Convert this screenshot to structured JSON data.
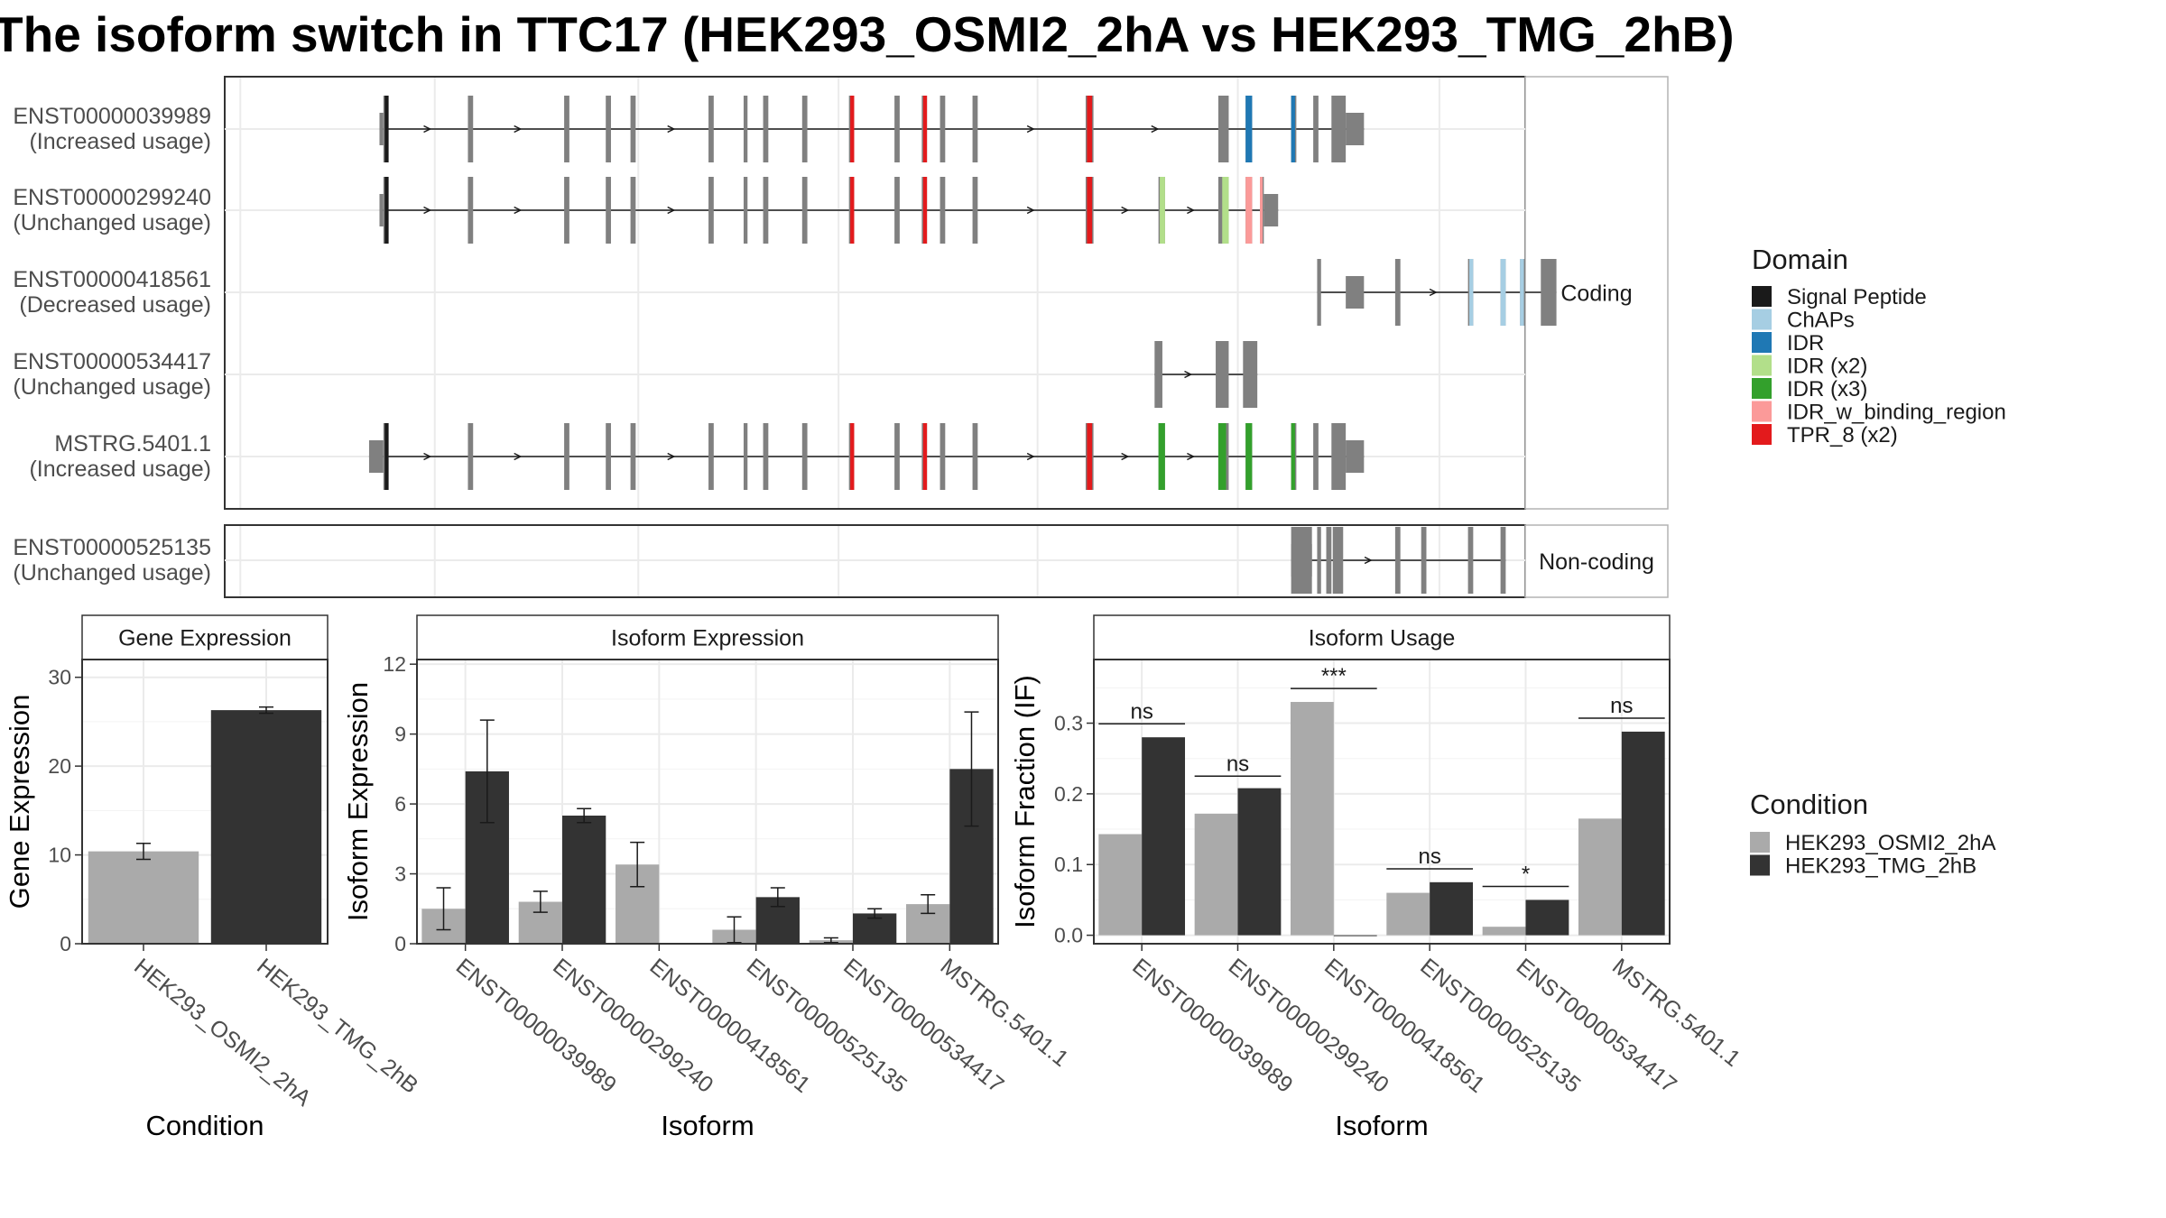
{
  "title": "The isoform switch in TTC17 (HEK293_OSMI2_2hA vs HEK293_TMG_2hB)",
  "structure_panel": {
    "facet_coding": "Coding",
    "facet_noncoding": "Non-coding",
    "isoforms": [
      {
        "id": "ENST00000039989",
        "usage": "(Increased usage)",
        "group": "coding",
        "utr_left": [
          [
            11.9,
            12.2
          ]
        ],
        "utr_right": [
          [
            86.2,
            87.6
          ]
        ],
        "start": 12.2,
        "end": 86.2,
        "exons": [
          [
            12.2,
            12.6
          ],
          [
            18.7,
            19.1
          ],
          [
            26.1,
            26.5
          ],
          [
            29.3,
            29.7
          ],
          [
            31.2,
            31.6
          ],
          [
            37.2,
            37.6
          ],
          [
            39.9,
            40.2
          ],
          [
            41.4,
            41.8
          ],
          [
            44.4,
            44.8
          ],
          [
            48.0,
            48.4
          ],
          [
            51.5,
            51.9
          ],
          [
            53.6,
            54.0
          ],
          [
            55.0,
            55.4
          ],
          [
            57.5,
            57.9
          ],
          [
            66.2,
            66.8
          ],
          [
            76.4,
            77.2
          ],
          [
            78.5,
            79.0
          ],
          [
            82.0,
            82.4
          ],
          [
            83.7,
            84.1
          ],
          [
            85.1,
            86.2
          ]
        ],
        "domains": [
          {
            "from": 12.3,
            "to": 12.6,
            "domain": "Signal Peptide"
          },
          {
            "from": 48.1,
            "to": 48.4,
            "domain": "TPR_8 (x2)"
          },
          {
            "from": 53.7,
            "to": 54.0,
            "domain": "TPR_8 (x2)"
          },
          {
            "from": 66.3,
            "to": 66.7,
            "domain": "TPR_8 (x2)"
          },
          {
            "from": 78.5,
            "to": 79.0,
            "domain": "IDR"
          },
          {
            "from": 82.0,
            "to": 82.3,
            "domain": "IDR"
          }
        ]
      },
      {
        "id": "ENST00000299240",
        "usage": "(Unchanged usage)",
        "group": "coding",
        "utr_left": [
          [
            11.9,
            12.2
          ]
        ],
        "utr_right": [
          [
            79.9,
            81.0
          ]
        ],
        "start": 12.2,
        "end": 79.9,
        "exons": [
          [
            12.2,
            12.6
          ],
          [
            18.7,
            19.1
          ],
          [
            26.1,
            26.5
          ],
          [
            29.3,
            29.7
          ],
          [
            31.2,
            31.6
          ],
          [
            37.2,
            37.6
          ],
          [
            39.9,
            40.2
          ],
          [
            41.4,
            41.8
          ],
          [
            44.4,
            44.8
          ],
          [
            48.0,
            48.4
          ],
          [
            51.5,
            51.9
          ],
          [
            53.6,
            54.0
          ],
          [
            55.0,
            55.4
          ],
          [
            57.5,
            57.9
          ],
          [
            66.2,
            66.8
          ],
          [
            71.8,
            72.3
          ],
          [
            76.4,
            77.2
          ],
          [
            78.5,
            79.0
          ],
          [
            79.6,
            79.9
          ]
        ],
        "domains": [
          {
            "from": 12.3,
            "to": 12.6,
            "domain": "Signal Peptide"
          },
          {
            "from": 48.1,
            "to": 48.4,
            "domain": "TPR_8 (x2)"
          },
          {
            "from": 53.7,
            "to": 54.0,
            "domain": "TPR_8 (x2)"
          },
          {
            "from": 66.3,
            "to": 66.7,
            "domain": "TPR_8 (x2)"
          },
          {
            "from": 71.9,
            "to": 72.3,
            "domain": "IDR (x2)"
          },
          {
            "from": 76.7,
            "to": 77.2,
            "domain": "IDR (x2)"
          },
          {
            "from": 78.5,
            "to": 79.0,
            "domain": "IDR_w_binding_region"
          },
          {
            "from": 79.6,
            "to": 79.8,
            "domain": "IDR_w_binding_region"
          }
        ]
      },
      {
        "id": "ENST00000418561",
        "usage": "(Decreased usage)",
        "group": "coding",
        "utr_left": [],
        "utr_right": [
          [
            86.2,
            87.6
          ]
        ],
        "start": 84.0,
        "end": 86.2,
        "exons": [
          [
            84.0,
            84.3
          ],
          [
            90.0,
            90.4
          ],
          [
            95.6,
            96.0
          ],
          [
            98.1,
            98.5
          ],
          [
            99.6,
            100.0
          ],
          [
            101.2,
            102.4
          ]
        ],
        "domains": [
          {
            "from": 95.7,
            "to": 96.0,
            "domain": "ChAPs"
          },
          {
            "from": 98.1,
            "to": 98.5,
            "domain": "ChAPs"
          },
          {
            "from": 99.6,
            "to": 99.9,
            "domain": "ChAPs"
          }
        ]
      },
      {
        "id": "ENST00000534417",
        "usage": "(Unchanged usage)",
        "group": "coding",
        "utr_left": [],
        "utr_right": [],
        "start": 71.5,
        "end": 79.4,
        "exons": [
          [
            71.5,
            72.1
          ],
          [
            76.2,
            77.2
          ],
          [
            78.3,
            79.4
          ]
        ],
        "domains": []
      },
      {
        "id": "MSTRG.5401.1",
        "usage": "(Increased usage)",
        "group": "coding",
        "utr_left": [
          [
            11.1,
            12.2
          ]
        ],
        "utr_right": [
          [
            86.2,
            87.6
          ]
        ],
        "start": 12.2,
        "end": 86.2,
        "exons": [
          [
            12.2,
            12.6
          ],
          [
            18.7,
            19.1
          ],
          [
            26.1,
            26.5
          ],
          [
            29.3,
            29.7
          ],
          [
            31.2,
            31.6
          ],
          [
            37.2,
            37.6
          ],
          [
            39.9,
            40.2
          ],
          [
            41.4,
            41.8
          ],
          [
            44.4,
            44.8
          ],
          [
            48.0,
            48.4
          ],
          [
            51.5,
            51.9
          ],
          [
            53.6,
            54.0
          ],
          [
            55.0,
            55.4
          ],
          [
            57.5,
            57.9
          ],
          [
            66.2,
            66.8
          ],
          [
            71.8,
            72.3
          ],
          [
            76.4,
            77.2
          ],
          [
            78.5,
            79.0
          ],
          [
            82.0,
            82.4
          ],
          [
            83.7,
            84.1
          ],
          [
            85.1,
            86.2
          ]
        ],
        "domains": [
          {
            "from": 12.3,
            "to": 12.6,
            "domain": "Signal Peptide"
          },
          {
            "from": 48.1,
            "to": 48.4,
            "domain": "TPR_8 (x2)"
          },
          {
            "from": 53.7,
            "to": 54.0,
            "domain": "TPR_8 (x2)"
          },
          {
            "from": 66.3,
            "to": 66.7,
            "domain": "TPR_8 (x2)"
          },
          {
            "from": 71.8,
            "to": 72.3,
            "domain": "IDR (x3)"
          },
          {
            "from": 76.4,
            "to": 77.0,
            "domain": "IDR (x3)"
          },
          {
            "from": 78.5,
            "to": 79.0,
            "domain": "IDR (x3)"
          },
          {
            "from": 82.0,
            "to": 82.3,
            "domain": "IDR (x3)"
          }
        ]
      },
      {
        "id": "ENST00000525135",
        "usage": "(Unchanged usage)",
        "group": "noncoding",
        "utr_left": [
          [
            82.0,
            83.6
          ]
        ],
        "utr_right": [],
        "start": 84.0,
        "end": 86.2,
        "exons": [
          [
            82.0,
            83.6
          ],
          [
            84.0,
            84.3
          ],
          [
            84.7,
            85.1
          ],
          [
            85.2,
            86.0
          ],
          [
            90.0,
            90.4
          ],
          [
            92.0,
            92.4
          ],
          [
            95.6,
            96.0
          ],
          [
            98.1,
            98.5
          ]
        ],
        "domains": []
      }
    ]
  },
  "domain_legend": {
    "title": "Domain",
    "items": [
      {
        "label": "Signal Peptide",
        "color": "#1a1a1a"
      },
      {
        "label": "ChAPs",
        "color": "#a6cee3"
      },
      {
        "label": "IDR",
        "color": "#1f78b4"
      },
      {
        "label": "IDR (x2)",
        "color": "#b2df8a"
      },
      {
        "label": "IDR (x3)",
        "color": "#33a02c"
      },
      {
        "label": "IDR_w_binding_region",
        "color": "#fb9a99"
      },
      {
        "label": "TPR_8 (x2)",
        "color": "#e31a1c"
      }
    ]
  },
  "condition_legend": {
    "title": "Condition",
    "items": [
      {
        "label": "HEK293_OSMI2_2hA",
        "color": "#aaaaaa"
      },
      {
        "label": "HEK293_TMG_2hB",
        "color": "#333333"
      }
    ]
  },
  "chart_data": [
    {
      "type": "bar",
      "title": "Gene Expression",
      "xlabel": "Condition",
      "ylabel": "Gene Expression",
      "ylim": [
        0,
        32
      ],
      "yticks": [
        0,
        10,
        20,
        30
      ],
      "categories": [
        "HEK293_OSMI2_2hA",
        "HEK293_TMG_2hB"
      ],
      "values": [
        10.4,
        26.3
      ],
      "errors": [
        0.9,
        0.35
      ],
      "colors": [
        "#aaaaaa",
        "#333333"
      ]
    },
    {
      "type": "bar",
      "title": "Isoform Expression",
      "xlabel": "Isoform",
      "ylabel": "Isoform Expression",
      "ylim": [
        0,
        12.2
      ],
      "yticks": [
        0,
        3,
        6,
        9,
        12
      ],
      "categories": [
        "ENST00000039989",
        "ENST00000299240",
        "ENST00000418561",
        "ENST00000525135",
        "ENST00000534417",
        "MSTRG.5401.1"
      ],
      "series": [
        {
          "name": "HEK293_OSMI2_2hA",
          "values": [
            1.5,
            1.8,
            3.4,
            0.6,
            0.15,
            1.7
          ],
          "errors": [
            0.9,
            0.45,
            0.95,
            0.55,
            0.1,
            0.4
          ]
        },
        {
          "name": "HEK293_TMG_2hB",
          "values": [
            7.4,
            5.5,
            0.0,
            2.0,
            1.3,
            7.5
          ],
          "errors": [
            2.2,
            0.3,
            0.0,
            0.4,
            0.2,
            2.45
          ]
        }
      ]
    },
    {
      "type": "bar",
      "title": "Isoform Usage",
      "xlabel": "Isoform",
      "ylabel": "Isoform Fraction (IF)",
      "ylim": [
        -0.012,
        0.39
      ],
      "yticks": [
        0.0,
        0.1,
        0.2,
        0.3
      ],
      "ytick_labels": [
        "0.0",
        "0.1",
        "0.2",
        "0.3"
      ],
      "categories": [
        "ENST00000039989",
        "ENST00000299240",
        "ENST00000418561",
        "ENST00000525135",
        "ENST00000534417",
        "MSTRG.5401.1"
      ],
      "series": [
        {
          "name": "HEK293_OSMI2_2hA",
          "values": [
            0.143,
            0.172,
            0.33,
            0.06,
            0.012,
            0.165
          ]
        },
        {
          "name": "HEK293_TMG_2hB",
          "values": [
            0.28,
            0.208,
            0.0,
            0.075,
            0.05,
            0.288
          ]
        }
      ],
      "significance": [
        {
          "label": "ns",
          "y": 0.299
        },
        {
          "label": "ns",
          "y": 0.225
        },
        {
          "label": "***",
          "y": 0.349
        },
        {
          "label": "ns",
          "y": 0.094
        },
        {
          "label": "*",
          "y": 0.069
        },
        {
          "label": "ns",
          "y": 0.307
        }
      ]
    }
  ]
}
